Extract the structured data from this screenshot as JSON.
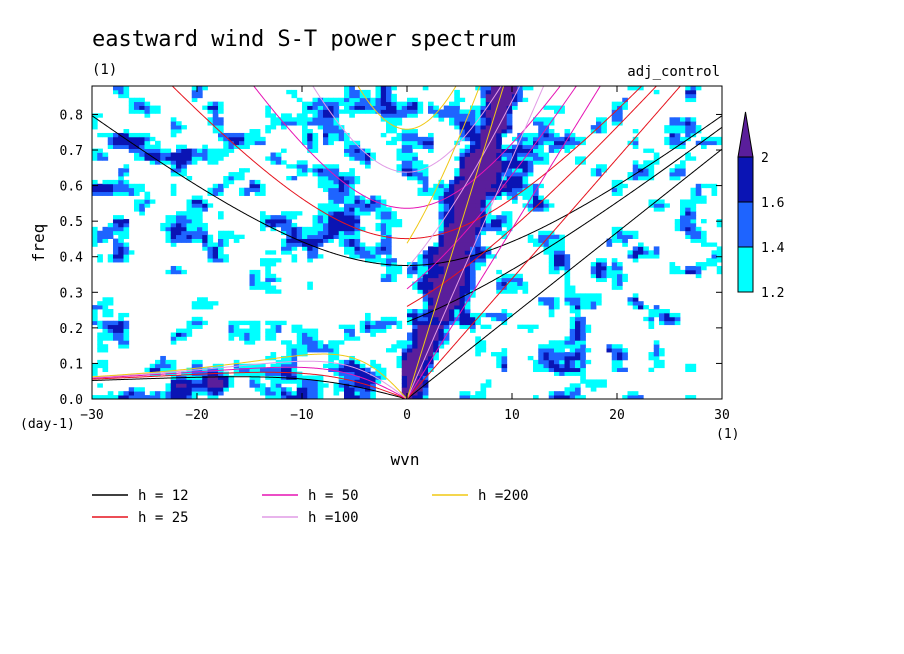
{
  "chart_data": {
    "type": "heatmap",
    "title": "eastward wind S-T power spectrum",
    "subtitle_left": "(1)",
    "subtitle_right": "adj_control",
    "xlabel": "wvn",
    "ylabel": "freq",
    "x_unit_label": "(1)",
    "y_unit_label": "(day-1)",
    "xlim": [
      -30,
      30
    ],
    "ylim": [
      0,
      0.88
    ],
    "x_ticks": [
      -30,
      -20,
      -10,
      0,
      10,
      20,
      30
    ],
    "x_tick_labels": [
      "−30",
      "−20",
      "−10",
      "0",
      "10",
      "20",
      "30"
    ],
    "y_ticks": [
      0,
      0.1,
      0.2,
      0.3,
      0.4,
      0.5,
      0.6,
      0.7,
      0.8
    ],
    "y_tick_labels": [
      "0.0",
      "0.1",
      "0.2",
      "0.3",
      "0.4",
      "0.5",
      "0.6",
      "0.7",
      "0.8"
    ],
    "colorbar": {
      "levels": [
        1.2,
        1.4,
        1.6,
        2
      ],
      "labels": [
        "1.2",
        "1.4",
        "1.6",
        "2"
      ],
      "colors": [
        "#00ffff",
        "#1e64ff",
        "#0a14b4",
        "#5a1e9b"
      ]
    },
    "dispersion_curves": [
      {
        "label": "h = 12",
        "h": 12,
        "color": "#000000"
      },
      {
        "label": "h = 25",
        "h": 25,
        "color": "#e6141e"
      },
      {
        "label": "h = 50",
        "h": 50,
        "color": "#e614b4"
      },
      {
        "label": "h =100",
        "h": 100,
        "color": "#e19be6"
      },
      {
        "label": "h =200",
        "h": 200,
        "color": "#f0c814"
      }
    ]
  }
}
